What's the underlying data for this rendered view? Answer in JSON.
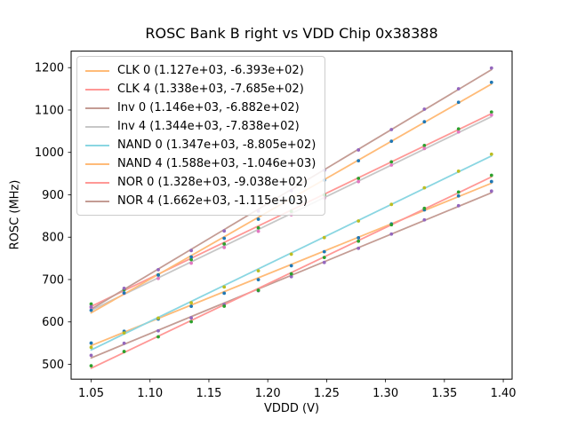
{
  "title": "ROSC Bank B right vs VDD Chip 0x38388",
  "chart_data": {
    "type": "scatter",
    "title": "ROSC Bank B right vs VDD Chip 0x38388",
    "xlabel": "VDDD (V)",
    "ylabel": "ROSC (MHz)",
    "xlim": [
      1.033,
      1.4075
    ],
    "ylim": [
      465,
      1239
    ],
    "xticks": [
      1.05,
      1.1,
      1.15,
      1.2,
      1.25,
      1.3,
      1.35,
      1.4
    ],
    "yticks": [
      500,
      600,
      700,
      800,
      900,
      1000,
      1100,
      1200
    ],
    "grid": false,
    "legend_position": "upper left",
    "x": [
      1.05,
      1.078,
      1.107,
      1.135,
      1.163,
      1.192,
      1.22,
      1.248,
      1.277,
      1.305,
      1.333,
      1.362,
      1.39
    ],
    "series": [
      {
        "name": "CLK 0",
        "legend_label": "CLK 0 (1.127e+03, -6.393e+02)",
        "fit_slope": 1127,
        "fit_intercept": -639.3,
        "line_color": "#ffbb78",
        "marker_color": "#1f77b4",
        "values": [
          550.1,
          578.0,
          606.9,
          636.8,
          667.8,
          699.7,
          732.6,
          765.6,
          798.5,
          831.4,
          864.4,
          897.3,
          931.2
        ]
      },
      {
        "name": "CLK 4",
        "legend_label": "CLK 4 (1.338e+03, -7.685e+02)",
        "fit_slope": 1338,
        "fit_intercept": -768.5,
        "line_color": "#ff9896",
        "marker_color": "#2ca02c",
        "values": [
          642.4,
          676.3,
          711.2,
          747.1,
          784.0,
          821.9,
          860.8,
          899.8,
          938.7,
          977.6,
          1016.5,
          1055.4,
          1095.3
        ]
      },
      {
        "name": "Inv 0",
        "legend_label": "Inv 0 (1.146e+03, -6.882e+02)",
        "fit_slope": 1146,
        "fit_intercept": -688.2,
        "line_color": "#c49c94",
        "marker_color": "#9467bd",
        "values": [
          521.1,
          549.6,
          579.0,
          609.5,
          641.0,
          673.4,
          706.9,
          740.4,
          773.8,
          807.3,
          840.8,
          874.2,
          908.7
        ]
      },
      {
        "name": "Inv 4",
        "legend_label": "Inv 4 (1.344e+03, -7.838e+02)",
        "fit_slope": 1344,
        "fit_intercept": -783.8,
        "line_color": "#c7c7c7",
        "marker_color": "#e377c2",
        "values": [
          633.4,
          667.5,
          702.6,
          738.6,
          775.7,
          813.8,
          852.9,
          892.0,
          931.0,
          970.1,
          1009.2,
          1048.3,
          1088.4
        ]
      },
      {
        "name": "NAND 0",
        "legend_label": "NAND 0 (1.347e+03, -8.805e+02)",
        "fit_slope": 1347,
        "fit_intercept": -880.5,
        "line_color": "#8ad6e2",
        "marker_color": "#bcbd22",
        "values": [
          539.9,
          574.0,
          609.2,
          645.3,
          682.5,
          720.7,
          759.8,
          799.0,
          838.2,
          877.3,
          916.5,
          955.6,
          995.8
        ]
      },
      {
        "name": "NAND 4",
        "legend_label": "NAND 4 (1.588e+03, -1.046e+03)",
        "fit_slope": 1588,
        "fit_intercept": -1046,
        "line_color": "#ffbb78",
        "marker_color": "#1f77b4",
        "values": [
          627.4,
          668.4,
          710.4,
          753.4,
          797.4,
          842.4,
          888.4,
          934.4,
          980.3,
          1026.3,
          1072.3,
          1118.3,
          1165.3
        ]
      },
      {
        "name": "NOR 0",
        "legend_label": "NOR 0 (1.328e+03, -9.038e+02)",
        "fit_slope": 1328,
        "fit_intercept": -903.8,
        "line_color": "#ff9896",
        "marker_color": "#2ca02c",
        "values": [
          496.6,
          530.2,
          564.9,
          600.5,
          637.1,
          674.7,
          713.4,
          752.0,
          790.6,
          829.3,
          867.9,
          906.5,
          946.1
        ]
      },
      {
        "name": "NOR 4",
        "legend_label": "NOR 4 (1.662e+03, -1.115e+03)",
        "fit_slope": 1662,
        "fit_intercept": -1115,
        "line_color": "#c49c94",
        "marker_color": "#9467bd",
        "values": [
          636.1,
          679.2,
          723.3,
          768.4,
          814.5,
          861.6,
          909.6,
          957.7,
          1005.8,
          1053.9,
          1102.0,
          1150.1,
          1199.2
        ]
      }
    ]
  }
}
